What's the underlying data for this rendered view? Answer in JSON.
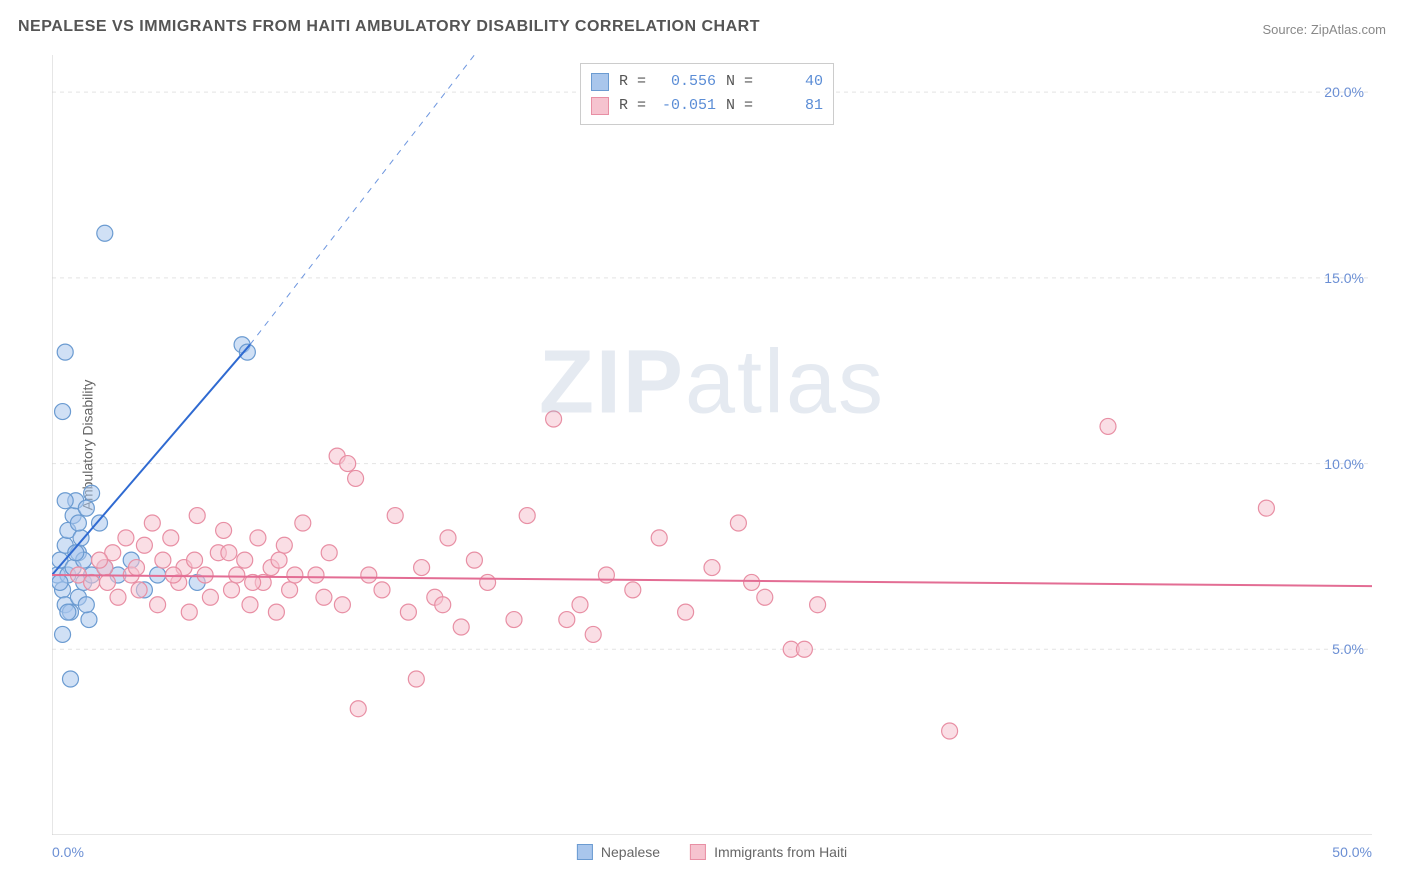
{
  "title": "NEPALESE VS IMMIGRANTS FROM HAITI AMBULATORY DISABILITY CORRELATION CHART",
  "source": "Source: ZipAtlas.com",
  "ylabel": "Ambulatory Disability",
  "watermark": "ZIPatlas",
  "chart": {
    "type": "scatter",
    "xlim": [
      0,
      50
    ],
    "ylim": [
      0,
      21
    ],
    "xticks": [
      0,
      10,
      20,
      30,
      40,
      50
    ],
    "xtick_labels_shown": {
      "first": "0.0%",
      "last": "50.0%"
    },
    "yticks": [
      5,
      10,
      15,
      20
    ],
    "ytick_labels": [
      "5.0%",
      "10.0%",
      "15.0%",
      "20.0%"
    ],
    "background_color": "#ffffff",
    "grid_color": "#e4e4e4",
    "grid_dash": "4,4",
    "axis_color": "#cccccc",
    "marker_radius": 8,
    "marker_opacity": 0.55,
    "series": [
      {
        "name": "Nepalese",
        "fill_color": "#a9c6ec",
        "stroke_color": "#6b9bd1",
        "trend": {
          "x1": 0,
          "y1": 7.0,
          "x2": 7.5,
          "y2": 13.2,
          "solid_color": "#2f6ad1",
          "width": 2,
          "dash_extend_x": 16,
          "dash_extend_y": 21
        },
        "R": "0.556",
        "N": "40",
        "points": [
          [
            0.2,
            7.0
          ],
          [
            0.3,
            7.4
          ],
          [
            0.4,
            6.6
          ],
          [
            0.5,
            7.8
          ],
          [
            0.5,
            6.2
          ],
          [
            0.6,
            8.2
          ],
          [
            0.6,
            7.0
          ],
          [
            0.7,
            6.0
          ],
          [
            0.8,
            8.6
          ],
          [
            0.8,
            7.2
          ],
          [
            0.9,
            9.0
          ],
          [
            1.0,
            6.4
          ],
          [
            1.0,
            7.6
          ],
          [
            1.1,
            8.0
          ],
          [
            1.2,
            6.8
          ],
          [
            1.2,
            7.4
          ],
          [
            1.3,
            8.8
          ],
          [
            1.4,
            5.8
          ],
          [
            1.5,
            9.2
          ],
          [
            1.5,
            7.0
          ],
          [
            0.4,
            11.4
          ],
          [
            0.5,
            13.0
          ],
          [
            2.0,
            16.2
          ],
          [
            0.7,
            4.2
          ],
          [
            1.8,
            8.4
          ],
          [
            2.0,
            7.2
          ],
          [
            2.5,
            7.0
          ],
          [
            3.0,
            7.4
          ],
          [
            3.5,
            6.6
          ],
          [
            4.0,
            7.0
          ],
          [
            0.3,
            6.8
          ],
          [
            0.6,
            6.0
          ],
          [
            0.9,
            7.6
          ],
          [
            5.5,
            6.8
          ],
          [
            1.0,
            8.4
          ],
          [
            0.4,
            5.4
          ],
          [
            7.2,
            13.2
          ],
          [
            7.4,
            13.0
          ],
          [
            1.3,
            6.2
          ],
          [
            0.5,
            9.0
          ]
        ]
      },
      {
        "name": "Immigrants from Haiti",
        "fill_color": "#f6c3cf",
        "stroke_color": "#e88fa4",
        "trend": {
          "x1": 0,
          "y1": 7.0,
          "x2": 50,
          "y2": 6.7,
          "solid_color": "#e36d94",
          "width": 2
        },
        "R": "-0.051",
        "N": "81",
        "points": [
          [
            1.0,
            7.0
          ],
          [
            1.5,
            6.8
          ],
          [
            2.0,
            7.2
          ],
          [
            2.3,
            7.6
          ],
          [
            2.5,
            6.4
          ],
          [
            2.8,
            8.0
          ],
          [
            3.0,
            7.0
          ],
          [
            3.3,
            6.6
          ],
          [
            3.5,
            7.8
          ],
          [
            3.8,
            8.4
          ],
          [
            4.0,
            6.2
          ],
          [
            4.2,
            7.4
          ],
          [
            4.5,
            8.0
          ],
          [
            4.8,
            6.8
          ],
          [
            5.0,
            7.2
          ],
          [
            5.2,
            6.0
          ],
          [
            5.5,
            8.6
          ],
          [
            5.8,
            7.0
          ],
          [
            6.0,
            6.4
          ],
          [
            6.3,
            7.6
          ],
          [
            6.5,
            8.2
          ],
          [
            6.8,
            6.6
          ],
          [
            7.0,
            7.0
          ],
          [
            7.3,
            7.4
          ],
          [
            7.5,
            6.2
          ],
          [
            7.8,
            8.0
          ],
          [
            8.0,
            6.8
          ],
          [
            8.3,
            7.2
          ],
          [
            8.5,
            6.0
          ],
          [
            8.8,
            7.8
          ],
          [
            9.0,
            6.6
          ],
          [
            9.5,
            8.4
          ],
          [
            10.0,
            7.0
          ],
          [
            10.3,
            6.4
          ],
          [
            10.5,
            7.6
          ],
          [
            11.0,
            6.2
          ],
          [
            11.5,
            9.6
          ],
          [
            12.0,
            7.0
          ],
          [
            10.8,
            10.2
          ],
          [
            11.2,
            10.0
          ],
          [
            12.5,
            6.6
          ],
          [
            13.0,
            8.6
          ],
          [
            13.5,
            6.0
          ],
          [
            14.0,
            7.2
          ],
          [
            14.5,
            6.4
          ],
          [
            15.0,
            8.0
          ],
          [
            15.5,
            5.6
          ],
          [
            16.0,
            7.4
          ],
          [
            16.5,
            6.8
          ],
          [
            17.5,
            5.8
          ],
          [
            18.0,
            8.6
          ],
          [
            19.0,
            11.2
          ],
          [
            20.0,
            6.2
          ],
          [
            20.5,
            5.4
          ],
          [
            21.0,
            7.0
          ],
          [
            22.0,
            6.6
          ],
          [
            23.0,
            8.0
          ],
          [
            24.0,
            6.0
          ],
          [
            25.0,
            7.2
          ],
          [
            26.0,
            8.4
          ],
          [
            27.0,
            6.4
          ],
          [
            28.0,
            5.0
          ],
          [
            28.5,
            5.0
          ],
          [
            29.0,
            6.2
          ],
          [
            34.0,
            2.8
          ],
          [
            13.8,
            4.2
          ],
          [
            11.6,
            3.4
          ],
          [
            40.0,
            11.0
          ],
          [
            46.0,
            8.8
          ],
          [
            9.2,
            7.0
          ],
          [
            4.6,
            7.0
          ],
          [
            5.4,
            7.4
          ],
          [
            3.2,
            7.2
          ],
          [
            6.7,
            7.6
          ],
          [
            7.6,
            6.8
          ],
          [
            8.6,
            7.4
          ],
          [
            2.1,
            6.8
          ],
          [
            1.8,
            7.4
          ],
          [
            14.8,
            6.2
          ],
          [
            19.5,
            5.8
          ],
          [
            26.5,
            6.8
          ]
        ]
      }
    ]
  },
  "legend_bottom": [
    {
      "label": "Nepalese",
      "fill": "#a9c6ec",
      "stroke": "#6b9bd1"
    },
    {
      "label": "Immigrants from Haiti",
      "fill": "#f6c3cf",
      "stroke": "#e88fa4"
    }
  ],
  "stats_box": [
    {
      "fill": "#a9c6ec",
      "stroke": "#6b9bd1",
      "R": "0.556",
      "N": "40"
    },
    {
      "fill": "#f6c3cf",
      "stroke": "#e88fa4",
      "R": "-0.051",
      "N": "81"
    }
  ]
}
